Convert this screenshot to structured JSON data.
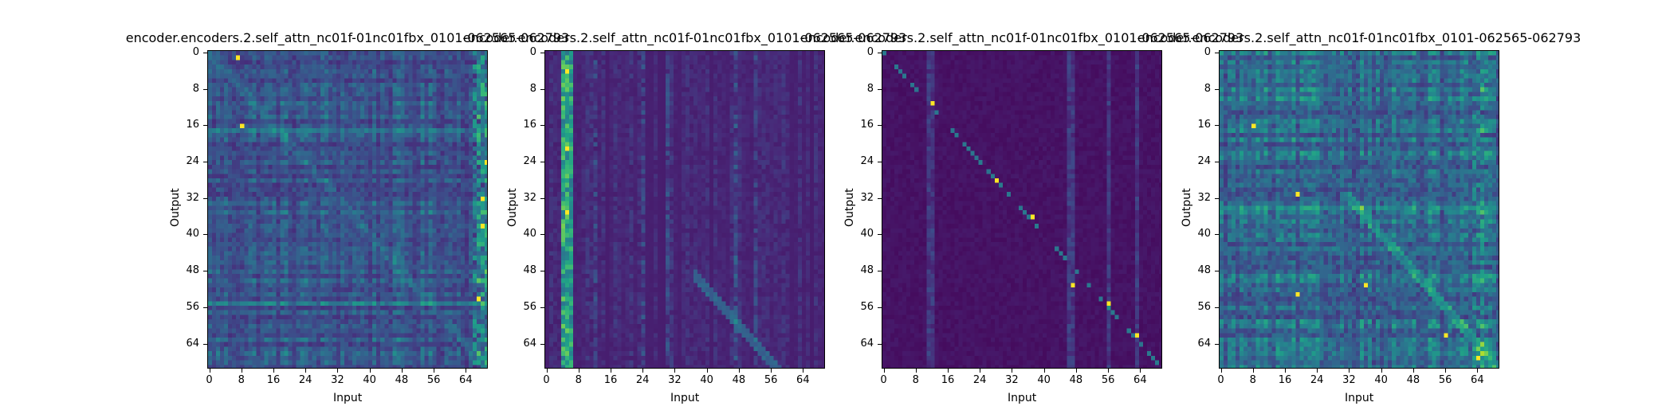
{
  "chart_data": [
    {
      "type": "heatmap",
      "title": "encoder.encoders.2.self_attn_nc01f-01nc01fbx_0101-062565-062793",
      "xlabel": "Input",
      "ylabel": "Output",
      "x_ticks": [
        "0",
        "8",
        "16",
        "24",
        "32",
        "40",
        "48",
        "56",
        "64"
      ],
      "y_ticks": [
        "0",
        "8",
        "16",
        "24",
        "32",
        "40",
        "48",
        "56",
        "64"
      ],
      "colormap": "viridis",
      "pattern": "diffuse"
    },
    {
      "type": "heatmap",
      "title": "encoder.encoders.2.self_attn_nc01f-01nc01fbx_0101-062565-062793",
      "xlabel": "Input",
      "ylabel": "Output",
      "x_ticks": [
        "0",
        "8",
        "16",
        "24",
        "32",
        "40",
        "48",
        "56",
        "64"
      ],
      "y_ticks": [
        "0",
        "8",
        "16",
        "24",
        "32",
        "40",
        "48",
        "56",
        "64"
      ],
      "colormap": "viridis",
      "pattern": "column-focused"
    },
    {
      "type": "heatmap",
      "title": "encoder.encoders.2.self_attn_nc01f-01nc01fbx_0101-062565-062793",
      "xlabel": "Input",
      "ylabel": "Output",
      "x_ticks": [
        "0",
        "8",
        "16",
        "24",
        "32",
        "40",
        "48",
        "56",
        "64"
      ],
      "y_ticks": [
        "0",
        "8",
        "16",
        "24",
        "32",
        "40",
        "48",
        "56",
        "64"
      ],
      "colormap": "viridis",
      "pattern": "sparse-diagonal"
    },
    {
      "type": "heatmap",
      "title": "encoder.encoders.2.self_attn_nc01f-01nc01fbx_0101-062565-062793",
      "xlabel": "Input",
      "ylabel": "Output",
      "x_ticks": [
        "0",
        "8",
        "16",
        "24",
        "32",
        "40",
        "48",
        "56",
        "64"
      ],
      "y_ticks": [
        "0",
        "8",
        "16",
        "24",
        "32",
        "40",
        "48",
        "56",
        "64"
      ],
      "colormap": "viridis",
      "pattern": "mixed"
    }
  ]
}
